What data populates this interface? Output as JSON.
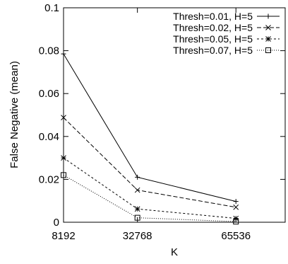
{
  "chart_data": {
    "type": "line",
    "title": "",
    "xlabel": "K",
    "ylabel": "False Negative (mean)",
    "x": [
      8192,
      32768,
      65536
    ],
    "xticks": [
      "8192",
      "32768",
      "65536"
    ],
    "xlim": [
      8192,
      81920
    ],
    "ylim": [
      0,
      0.1
    ],
    "yticks": [
      "0",
      "0.02",
      "0.04",
      "0.06",
      "0.08",
      "0.1"
    ],
    "grid": false,
    "legend_position": "top-right",
    "series": [
      {
        "name": "Thresh=0.01, H=5",
        "values": [
          0.0785,
          0.021,
          0.0097
        ],
        "marker": "plus",
        "dash": "solid"
      },
      {
        "name": "Thresh=0.02, H=5",
        "values": [
          0.0488,
          0.015,
          0.007
        ],
        "marker": "x",
        "dash": "dashed"
      },
      {
        "name": "Thresh=0.05, H=5",
        "values": [
          0.03,
          0.0062,
          0.0018
        ],
        "marker": "star",
        "dash": "dotted"
      },
      {
        "name": "Thresh=0.07, H=5",
        "values": [
          0.022,
          0.0021,
          0.0003
        ],
        "marker": "square",
        "dash": "fine-dotted"
      }
    ]
  }
}
